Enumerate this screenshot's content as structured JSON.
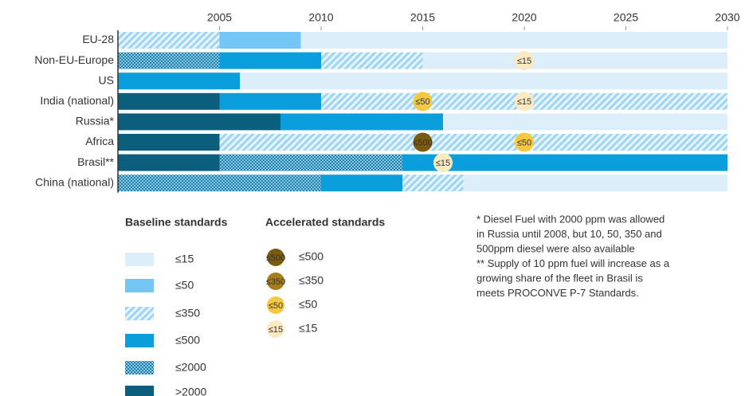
{
  "chart_data": {
    "type": "timeline",
    "xlim": [
      2000,
      2030
    ],
    "xticks": [
      2005,
      2010,
      2015,
      2020,
      2025,
      2030
    ],
    "rows": [
      {
        "name": "EU-28",
        "segments": [
          {
            "start": 2000,
            "end": 2005,
            "standard": "≤350"
          },
          {
            "start": 2005,
            "end": 2009,
            "standard": "≤50"
          },
          {
            "start": 2009,
            "end": 2030,
            "standard": "≤15"
          }
        ],
        "accelerated": []
      },
      {
        "name": "Non-EU-Europe",
        "segments": [
          {
            "start": 2000,
            "end": 2005,
            "standard": "≤2000"
          },
          {
            "start": 2005,
            "end": 2010,
            "standard": "≤500"
          },
          {
            "start": 2010,
            "end": 2015,
            "standard": "≤350"
          },
          {
            "start": 2015,
            "end": 2030,
            "standard": "≤15"
          }
        ],
        "accelerated": [
          {
            "x": 2020,
            "standard": "≤15"
          }
        ]
      },
      {
        "name": "US",
        "segments": [
          {
            "start": 2000,
            "end": 2006,
            "standard": "≤500"
          },
          {
            "start": 2006,
            "end": 2030,
            "standard": "≤15"
          }
        ],
        "accelerated": []
      },
      {
        "name": "India (national)",
        "segments": [
          {
            "start": 2000,
            "end": 2005,
            "standard": ">2000"
          },
          {
            "start": 2005,
            "end": 2010,
            "standard": "≤500"
          },
          {
            "start": 2010,
            "end": 2030,
            "standard": "≤350"
          }
        ],
        "accelerated": [
          {
            "x": 2015,
            "standard": "≤50"
          },
          {
            "x": 2020,
            "standard": "≤15"
          }
        ]
      },
      {
        "name": "Russia*",
        "segments": [
          {
            "start": 2000,
            "end": 2008,
            "standard": ">2000"
          },
          {
            "start": 2008,
            "end": 2016,
            "standard": "≤500"
          },
          {
            "start": 2016,
            "end": 2030,
            "standard": "≤15"
          }
        ],
        "accelerated": []
      },
      {
        "name": "Africa",
        "segments": [
          {
            "start": 2000,
            "end": 2005,
            "standard": ">2000"
          },
          {
            "start": 2005,
            "end": 2030,
            "standard": "≤350"
          }
        ],
        "accelerated": [
          {
            "x": 2015,
            "standard": "≤500"
          },
          {
            "x": 2020,
            "standard": "≤50"
          }
        ]
      },
      {
        "name": "Brasil**",
        "segments": [
          {
            "start": 2000,
            "end": 2005,
            "standard": ">2000"
          },
          {
            "start": 2005,
            "end": 2014,
            "standard": "≤2000"
          },
          {
            "start": 2014,
            "end": 2030,
            "standard": "≤500"
          }
        ],
        "accelerated": [
          {
            "x": 2016,
            "standard": "≤15"
          }
        ]
      },
      {
        "name": "China (national)",
        "segments": [
          {
            "start": 2000,
            "end": 2010,
            "standard": "≤2000"
          },
          {
            "start": 2010,
            "end": 2014,
            "standard": "≤500"
          },
          {
            "start": 2014,
            "end": 2017,
            "standard": "≤350"
          },
          {
            "start": 2017,
            "end": 2030,
            "standard": "≤15"
          }
        ],
        "accelerated": []
      }
    ],
    "baseline_legend": {
      "title": "Baseline standards",
      "items": [
        {
          "label": "≤15",
          "color": "#dbeefa",
          "pattern": "solid"
        },
        {
          "label": "≤50",
          "color": "#74c6f5",
          "pattern": "solid"
        },
        {
          "label": "≤350",
          "color": "#9fd4f2",
          "pattern": "hatch"
        },
        {
          "label": "≤500",
          "color": "#0a9fdc",
          "pattern": "solid"
        },
        {
          "label": "≤2000",
          "color": "#1b7faa",
          "pattern": "dots"
        },
        {
          "label": ">2000",
          "color": "#0b5e7c",
          "pattern": "solid"
        }
      ]
    },
    "accelerated_legend": {
      "title": "Accelerated standards",
      "items": [
        {
          "label": "≤500",
          "color": "#7a5a10"
        },
        {
          "label": "≤350",
          "color": "#a57d19"
        },
        {
          "label": "≤50",
          "color": "#f5c842"
        },
        {
          "label": "≤15",
          "color": "#fbe9c0"
        }
      ]
    },
    "footnotes": [
      "* Diesel Fuel with 2000 ppm was allowed",
      "in Russia until 2008, but 10, 50, 350 and",
      "500ppm diesel were also available",
      "** Supply of 10 ppm fuel will increase as a",
      "growing share of the fleet in Brasil is",
      "meets  PROCONVE P-7 Standards."
    ]
  }
}
